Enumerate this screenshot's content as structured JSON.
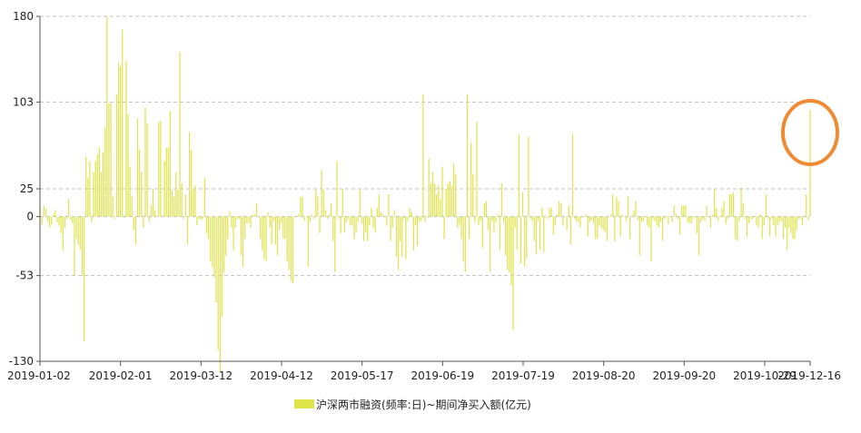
{
  "chart_data": {
    "type": "bar",
    "title": "",
    "xlabel": "",
    "ylabel": "",
    "ylim": [
      -130,
      180
    ],
    "y_ticks": [
      180,
      103,
      25,
      0,
      -53,
      -130
    ],
    "x_tick_labels": [
      "2019-01-02",
      "2019-02-01",
      "2019-03-12",
      "2019-04-12",
      "2019-05-17",
      "2019-06-19",
      "2019-07-19",
      "2019-08-20",
      "2019-09-20",
      "2019-10-29",
      "2019-12-16"
    ],
    "grid": true,
    "legend_position": "bottom-center",
    "series": [
      {
        "name": "沪深两市融资(频率:日)~期间净买入额(亿元)",
        "color": "#dfe34a",
        "values": [
          8,
          -7,
          10,
          7,
          -5,
          -10,
          -7,
          2,
          6,
          -5,
          -8,
          -15,
          -30,
          -10,
          -2,
          16,
          -3,
          -6,
          -53,
          -20,
          -25,
          -30,
          -53,
          -112,
          54,
          35,
          50,
          -5,
          40,
          50,
          56,
          62,
          40,
          58,
          80,
          180,
          102,
          102,
          18,
          -2,
          110,
          138,
          135,
          168,
          -1,
          140,
          92,
          45,
          18,
          -12,
          -25,
          88,
          60,
          40,
          -10,
          98,
          84,
          -5,
          10,
          25,
          6,
          0,
          85,
          86,
          0,
          50,
          62,
          62,
          95,
          24,
          18,
          40,
          24,
          148,
          30,
          -2,
          20,
          -25,
          76,
          60,
          24,
          28,
          -8,
          -2,
          -3,
          -2,
          35,
          -15,
          -20,
          -40,
          -45,
          -54,
          -77,
          -120,
          -140,
          -90,
          -50,
          -35,
          -20,
          5,
          -10,
          -30,
          -10,
          -2,
          -2,
          -35,
          -45,
          -20,
          -6,
          -6,
          -10,
          2,
          2,
          12,
          0,
          -20,
          -30,
          -38,
          -40,
          4,
          -10,
          -25,
          -4,
          -25,
          -35,
          -12,
          -6,
          -20,
          -20,
          -40,
          -48,
          -58,
          -60,
          0,
          0,
          2,
          18,
          18,
          -4,
          0,
          -45,
          -5,
          2,
          -2,
          24,
          18,
          -15,
          42,
          24,
          6,
          -2,
          2,
          12,
          -22,
          -50,
          50,
          -2,
          -15,
          25,
          -14,
          -5,
          -2,
          -8,
          -8,
          -20,
          -14,
          -5,
          24,
          -6,
          -22,
          -14,
          -22,
          -8,
          8,
          -10,
          -14,
          8,
          20,
          4,
          2,
          0,
          -8,
          20,
          -22,
          -10,
          6,
          -36,
          -48,
          -22,
          -36,
          -2,
          -38,
          -4,
          8,
          4,
          -30,
          -8,
          -26,
          -5,
          -4,
          110,
          -5,
          -1,
          52,
          30,
          40,
          30,
          20,
          28,
          16,
          45,
          -20,
          25,
          30,
          32,
          28,
          48,
          38,
          -10,
          -7,
          -20,
          -40,
          -50,
          110,
          -20,
          66,
          38,
          -5,
          85,
          -8,
          -4,
          -28,
          12,
          14,
          -12,
          -50,
          -4,
          -14,
          -5,
          2,
          -30,
          30,
          -5,
          -35,
          -48,
          -50,
          -62,
          -102,
          -10,
          -30,
          74,
          -42,
          22,
          -45,
          -38,
          72,
          -2,
          -4,
          -22,
          -34,
          -4,
          -30,
          8,
          -32,
          0,
          -2,
          8,
          8,
          -16,
          -8,
          2,
          14,
          12,
          -8,
          0,
          -12,
          10,
          -25,
          74,
          -2,
          -4,
          -5,
          -10,
          0,
          0,
          2,
          -18,
          -5,
          -3,
          -6,
          -20,
          -20,
          -8,
          -10,
          -12,
          -14,
          -22,
          0,
          2,
          20,
          -22,
          18,
          14,
          -18,
          2,
          0,
          -4,
          18,
          -20,
          0,
          6,
          14,
          -3,
          -35,
          -5,
          -4,
          0,
          -8,
          -10,
          -40,
          -2,
          -4,
          -8,
          -10,
          -5,
          -22,
          -2,
          0,
          -7,
          0,
          -5,
          10,
          2,
          -2,
          -16,
          10,
          10,
          10,
          -5,
          -6,
          -6,
          -2,
          0,
          -15,
          -35,
          -5,
          -2,
          -4,
          10,
          0,
          -10,
          2,
          25,
          8,
          -4,
          0,
          8,
          14,
          -7,
          -2,
          20,
          20,
          22,
          -20,
          -22,
          -4,
          26,
          12,
          -2,
          -18,
          -6,
          -2,
          -2,
          0,
          -8,
          -10,
          2,
          -20,
          -8,
          20,
          -2,
          -18,
          -2,
          -8,
          -18,
          -8,
          -5,
          -4,
          -20,
          -10,
          -30,
          -10,
          -15,
          -20,
          -20,
          -12,
          -2,
          -2,
          -8,
          0,
          20,
          -3,
          96
        ]
      }
    ]
  },
  "legend": {
    "label": "沪深两市融资(频率:日)~期间净买入额(亿元)",
    "swatch_color": "#dfe34a"
  },
  "annotation": {
    "shape": "circle",
    "color": "#f08a33"
  },
  "colors": {
    "bar": "#dfe34a",
    "grid": "#bfbfbf",
    "axis": "#555555",
    "text": "#222222"
  }
}
